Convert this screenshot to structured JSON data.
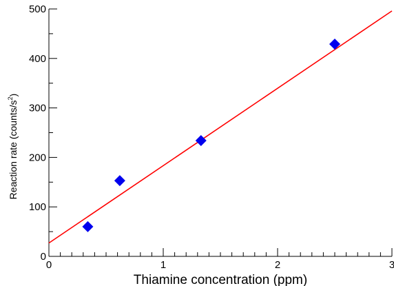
{
  "chart_data": {
    "type": "scatter",
    "xlabel": "Thiamine concentration (ppm)",
    "ylabel_main": "Reaction rate (counts/s",
    "ylabel_sup": "2",
    "ylabel_close": ")",
    "xlim": [
      0,
      3
    ],
    "ylim": [
      0,
      500
    ],
    "x_ticks": [
      0,
      1,
      2,
      3
    ],
    "x_tick_labels": [
      "0",
      "1",
      "2",
      "3"
    ],
    "x_minor_step": 0.1,
    "y_ticks": [
      0,
      100,
      200,
      300,
      400,
      500
    ],
    "y_tick_labels": [
      "0",
      "100",
      "200",
      "300",
      "400",
      "500"
    ],
    "y_minor_step": 50,
    "grid": false,
    "series": [
      {
        "marker": "diamond",
        "color": "#0000ee",
        "points": [
          {
            "x": 0.34,
            "y": 60
          },
          {
            "x": 0.62,
            "y": 153
          },
          {
            "x": 1.33,
            "y": 234
          },
          {
            "x": 2.5,
            "y": 429
          }
        ]
      }
    ],
    "fit_line": {
      "color": "#ff0000",
      "x": [
        0,
        3
      ],
      "y": [
        27,
        496
      ]
    }
  }
}
